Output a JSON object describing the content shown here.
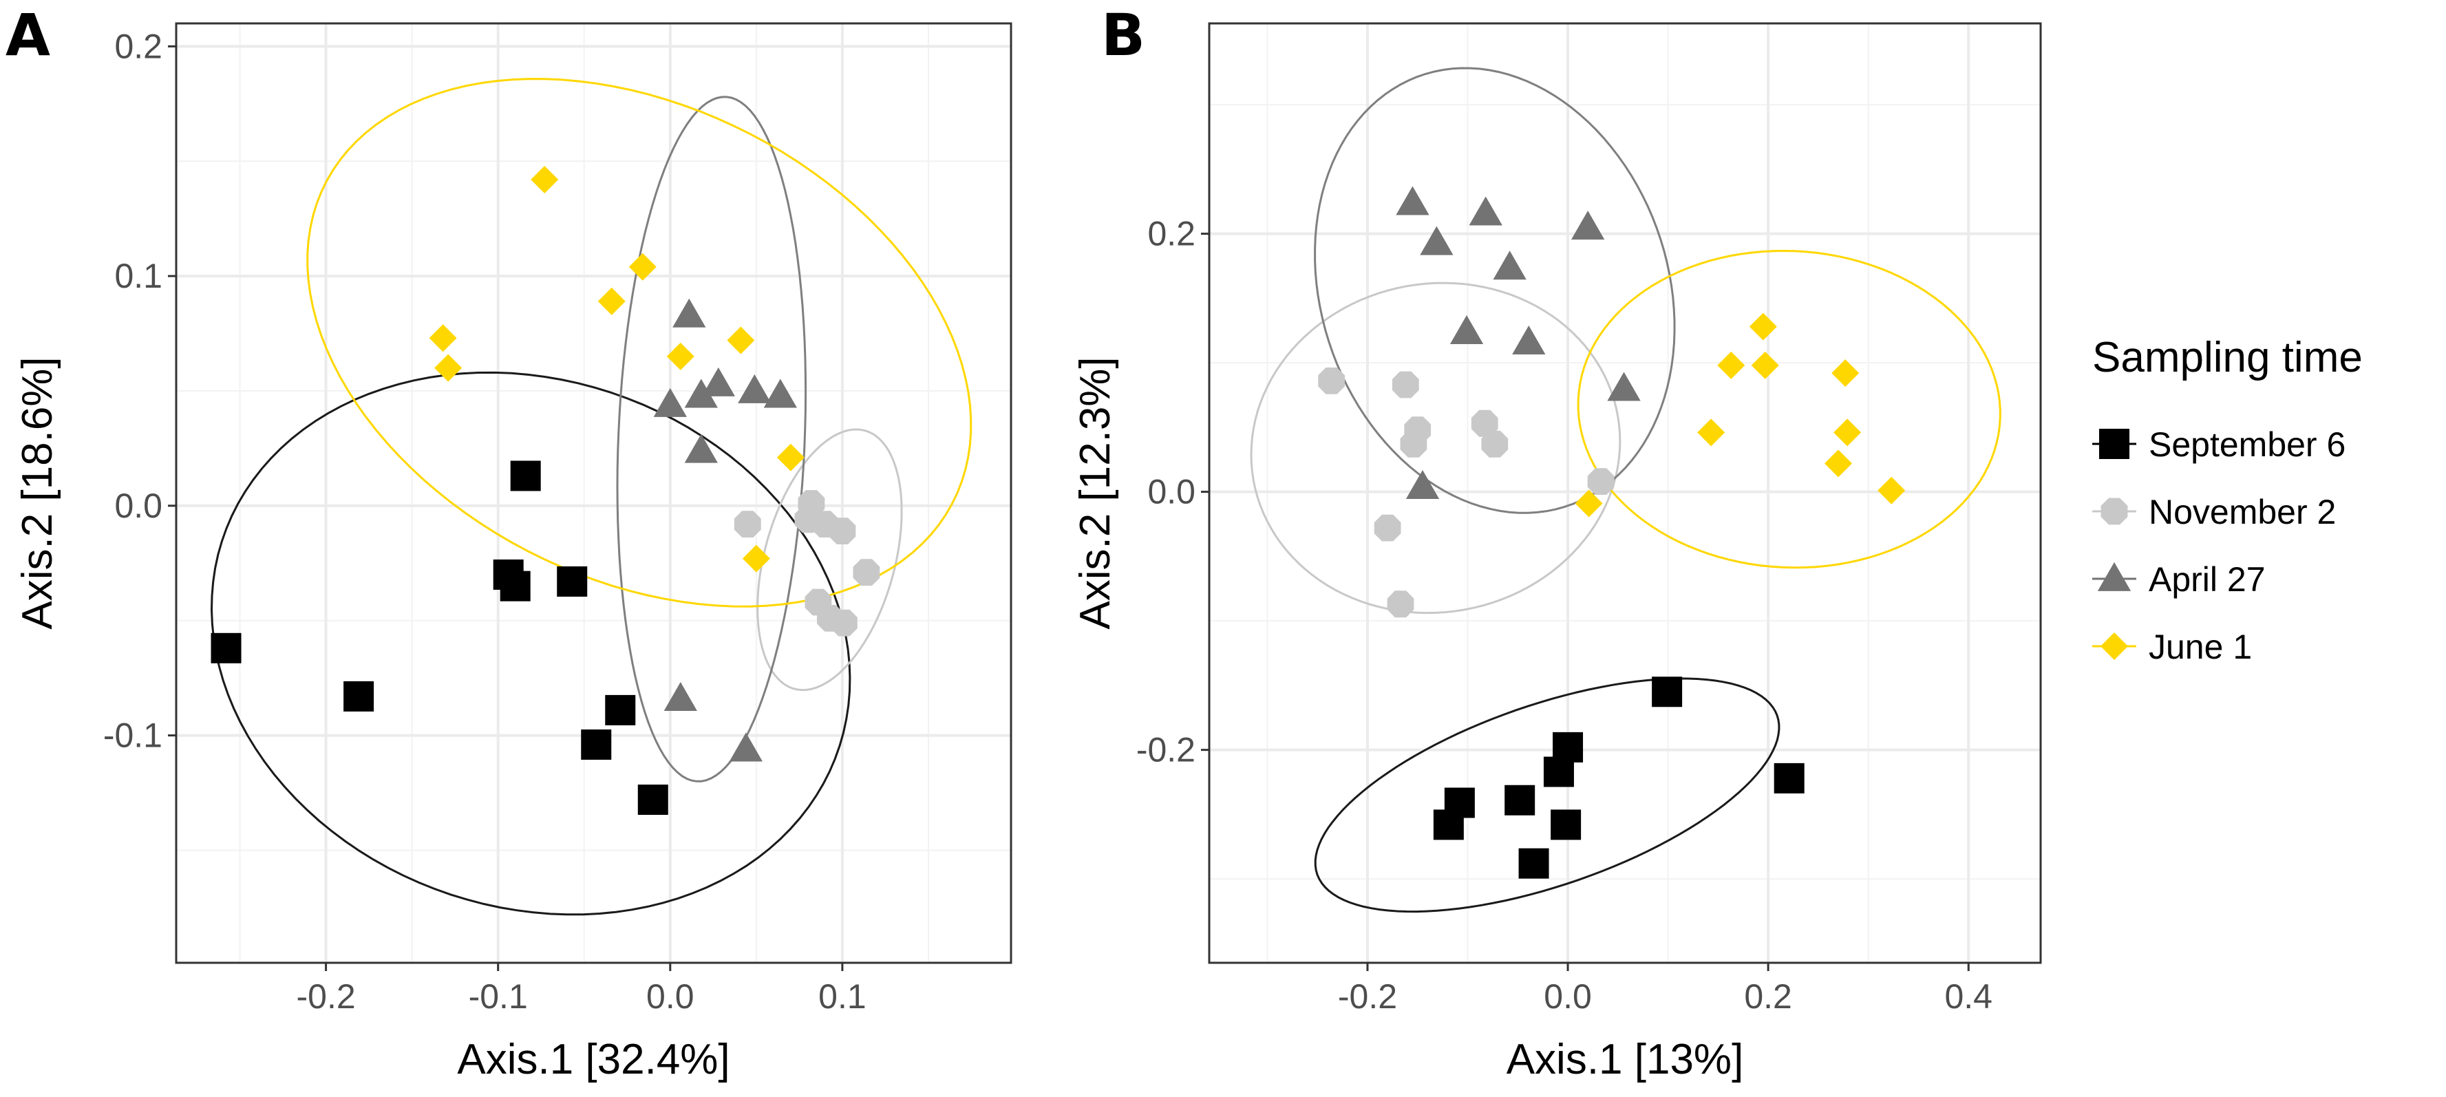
{
  "groups": [
    {
      "name": "September 6",
      "shape": "square",
      "color": "#000000",
      "ellipse_color": "#1a1a1a"
    },
    {
      "name": "November 2",
      "shape": "circle",
      "color": "#c8c8c8",
      "ellipse_color": "#c8c8c8"
    },
    {
      "name": "April 27",
      "shape": "triangle",
      "color": "#737373",
      "ellipse_color": "#7f7f7f"
    },
    {
      "name": "June 1",
      "shape": "diamond",
      "color": "#ffd700",
      "ellipse_color": "#ffd700"
    }
  ],
  "legend": {
    "title": "Sampling time",
    "placement": "right"
  },
  "chart_data": [
    {
      "type": "scatter",
      "panel_label": "A",
      "xlabel": "Axis.1   [32.4%]",
      "ylabel": "Axis.2   [18.6%]",
      "xlim": [
        -0.287,
        0.198
      ],
      "ylim": [
        -0.199,
        0.21
      ],
      "xticks": [
        -0.2,
        -0.1,
        0.0,
        0.1
      ],
      "xtick_labels": [
        "-0.2",
        "-0.1",
        "0.0",
        "0.1"
      ],
      "yticks": [
        -0.1,
        0.0,
        0.1,
        0.2
      ],
      "ytick_labels": [
        "-0.1",
        "0.0",
        "0.1",
        "0.2"
      ],
      "minor_x": [
        -0.25,
        -0.15,
        -0.05,
        0.05,
        0.15
      ],
      "minor_y": [
        -0.15,
        -0.05,
        0.05,
        0.15
      ],
      "grid": true,
      "series": [
        {
          "group": 0,
          "points": [
            [
              -0.258,
              -0.062
            ],
            [
              -0.181,
              -0.083
            ],
            [
              -0.084,
              0.013
            ],
            [
              -0.094,
              -0.03
            ],
            [
              -0.09,
              -0.035
            ],
            [
              -0.057,
              -0.033
            ],
            [
              -0.029,
              -0.089
            ],
            [
              -0.043,
              -0.104
            ],
            [
              -0.01,
              -0.128
            ]
          ],
          "ellipse": {
            "center": [
              -0.081,
              -0.06
            ],
            "a": [
              0.17,
              -0.061
            ],
            "b": [
              -0.074,
              -0.101
            ]
          }
        },
        {
          "group": 1,
          "points": [
            [
              0.045,
              -0.008
            ],
            [
              0.082,
              0.001
            ],
            [
              0.08,
              -0.006
            ],
            [
              0.09,
              -0.008
            ],
            [
              0.1,
              -0.011
            ],
            [
              0.114,
              -0.029
            ],
            [
              0.086,
              -0.042
            ],
            [
              0.101,
              -0.051
            ],
            [
              0.093,
              -0.049
            ]
          ],
          "ellipse": {
            "center": [
              0.0926,
              -0.0235
            ],
            "a": [
              0.0196,
              0.0564
            ],
            "b": [
              0.037,
              -0.0061
            ]
          }
        },
        {
          "group": 2,
          "points": [
            [
              0.011,
              0.083
            ],
            [
              0.0,
              0.044
            ],
            [
              0.018,
              0.048
            ],
            [
              0.028,
              0.053
            ],
            [
              0.049,
              0.05
            ],
            [
              0.064,
              0.048
            ],
            [
              0.018,
              0.024
            ],
            [
              0.006,
              -0.084
            ],
            [
              0.044,
              -0.106
            ]
          ],
          "ellipse": {
            "center": [
              0.024,
              0.029
            ],
            "a": [
              0.0087,
              0.149
            ],
            "b": [
              0.054,
              -0.003
            ]
          }
        },
        {
          "group": 3,
          "points": [
            [
              -0.073,
              0.142
            ],
            [
              -0.132,
              0.073
            ],
            [
              -0.129,
              0.06
            ],
            [
              -0.034,
              0.089
            ],
            [
              -0.016,
              0.104
            ],
            [
              0.006,
              0.065
            ],
            [
              0.041,
              0.072
            ],
            [
              0.07,
              0.021
            ],
            [
              0.05,
              -0.023
            ]
          ],
          "ellipse": {
            "center": [
              -0.018,
              0.071
            ],
            "a": [
              0.178,
              -0.075
            ],
            "b": [
              -0.074,
              -0.087
            ]
          }
        }
      ]
    },
    {
      "type": "scatter",
      "panel_label": "B",
      "xlabel": "Axis.1   [13%]",
      "ylabel": "Axis.2   [12.3%]",
      "xlim": [
        -0.358,
        0.472
      ],
      "ylim": [
        -0.365,
        0.363
      ],
      "xticks": [
        -0.2,
        0.0,
        0.2,
        0.4
      ],
      "xtick_labels": [
        "-0.2",
        "0.0",
        "0.2",
        "0.4"
      ],
      "yticks": [
        -0.2,
        0.0,
        0.2
      ],
      "ytick_labels": [
        "-0.2",
        "0.0",
        "0.2"
      ],
      "minor_x": [
        -0.3,
        -0.1,
        0.1,
        0.3
      ],
      "minor_y": [
        -0.3,
        -0.1,
        0.1,
        0.3
      ],
      "grid": true,
      "series": [
        {
          "group": 0,
          "points": [
            [
              0.099,
              -0.155
            ],
            [
              0.221,
              -0.222
            ],
            [
              0.0,
              -0.198
            ],
            [
              -0.009,
              -0.217
            ],
            [
              -0.048,
              -0.239
            ],
            [
              -0.002,
              -0.258
            ],
            [
              -0.034,
              -0.288
            ],
            [
              -0.108,
              -0.241
            ],
            [
              -0.119,
              -0.258
            ]
          ],
          "ellipse": {
            "center": [
              -0.0206,
              -0.235
            ],
            "a": [
              0.2275,
              0.0652
            ],
            "b": [
              0.0429,
              -0.0625
            ]
          }
        },
        {
          "group": 1,
          "points": [
            [
              -0.236,
              0.086
            ],
            [
              -0.162,
              0.083
            ],
            [
              -0.15,
              0.048
            ],
            [
              -0.154,
              0.037
            ],
            [
              -0.083,
              0.053
            ],
            [
              -0.073,
              0.037
            ],
            [
              -0.18,
              -0.028
            ],
            [
              -0.167,
              -0.087
            ],
            [
              0.033,
              0.008
            ]
          ],
          "ellipse": {
            "center": [
              -0.132,
              0.034
            ],
            "a": [
              0.18,
              -0.0217
            ],
            "b": [
              -0.0386,
              -0.126
            ]
          }
        },
        {
          "group": 2,
          "points": [
            [
              -0.155,
              0.224
            ],
            [
              -0.082,
              0.216
            ],
            [
              -0.131,
              0.193
            ],
            [
              0.02,
              0.205
            ],
            [
              -0.058,
              0.174
            ],
            [
              -0.101,
              0.124
            ],
            [
              -0.039,
              0.116
            ],
            [
              0.056,
              0.08
            ],
            [
              -0.145,
              0.004
            ]
          ],
          "ellipse": {
            "center": [
              -0.073,
              0.156
            ],
            "a": [
              -0.0515,
              0.171
            ],
            "b": [
              0.172,
              0.0217
            ]
          }
        },
        {
          "group": 3,
          "points": [
            [
              0.195,
              0.128
            ],
            [
              0.163,
              0.098
            ],
            [
              0.197,
              0.098
            ],
            [
              0.277,
              0.092
            ],
            [
              0.143,
              0.046
            ],
            [
              0.279,
              0.046
            ],
            [
              0.27,
              0.022
            ],
            [
              0.323,
              0.001
            ],
            [
              0.021,
              -0.009
            ]
          ],
          "ellipse": {
            "center": [
              0.221,
              0.064
            ],
            "a": [
              0.21,
              -0.0136
            ],
            "b": [
              -0.0172,
              -0.122
            ]
          }
        }
      ]
    }
  ]
}
